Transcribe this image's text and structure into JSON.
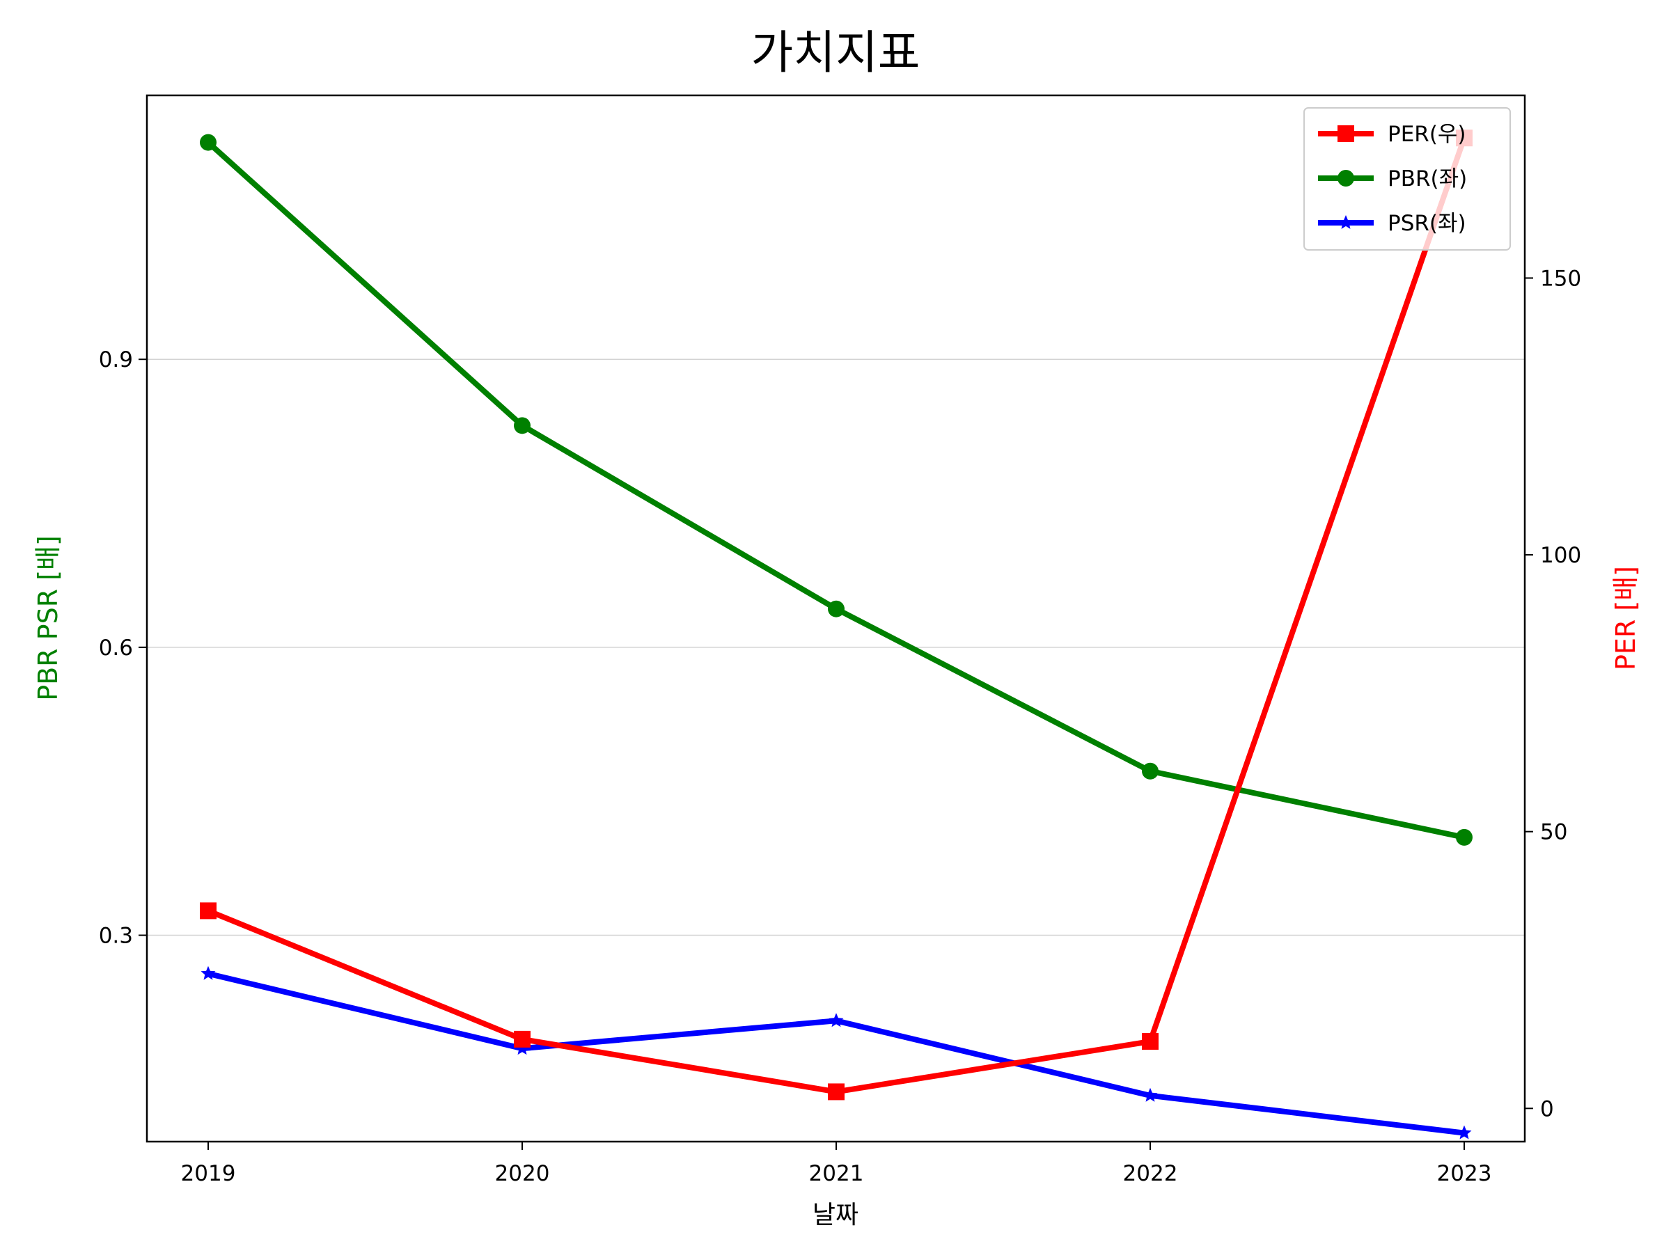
{
  "chart_data": {
    "type": "line",
    "title": "가치지표",
    "xlabel": "날짜",
    "ylabel_left": "PBR PSR [배]",
    "ylabel_right": "PER [배]",
    "categories": [
      "2019",
      "2020",
      "2021",
      "2022",
      "2023"
    ],
    "ylim_left": [
      0.085,
      1.175
    ],
    "yticks_left": [
      0.3,
      0.6,
      0.9
    ],
    "ytick_labels_left": [
      "0.3",
      "0.6",
      "0.9"
    ],
    "ylim_right": [
      -6,
      183
    ],
    "yticks_right": [
      0,
      50,
      100,
      150
    ],
    "ytick_labels_right": [
      "0",
      "50",
      "100",
      "150"
    ],
    "grid": "left-axis horizontal",
    "legend_position": "top-right",
    "series": [
      {
        "name": "PER(우)",
        "axis": "right",
        "color": "#ff0000",
        "marker": "square",
        "values": [
          35.7,
          12.5,
          3.0,
          12.1,
          175.3
        ]
      },
      {
        "name": "PBR(좌)",
        "axis": "left",
        "color": "#008000",
        "marker": "circle",
        "values": [
          1.126,
          0.831,
          0.64,
          0.471,
          0.402
        ]
      },
      {
        "name": "PSR(좌)",
        "axis": "left",
        "color": "#0000ff",
        "marker": "star",
        "values": [
          0.26,
          0.182,
          0.211,
          0.133,
          0.094
        ]
      }
    ]
  }
}
